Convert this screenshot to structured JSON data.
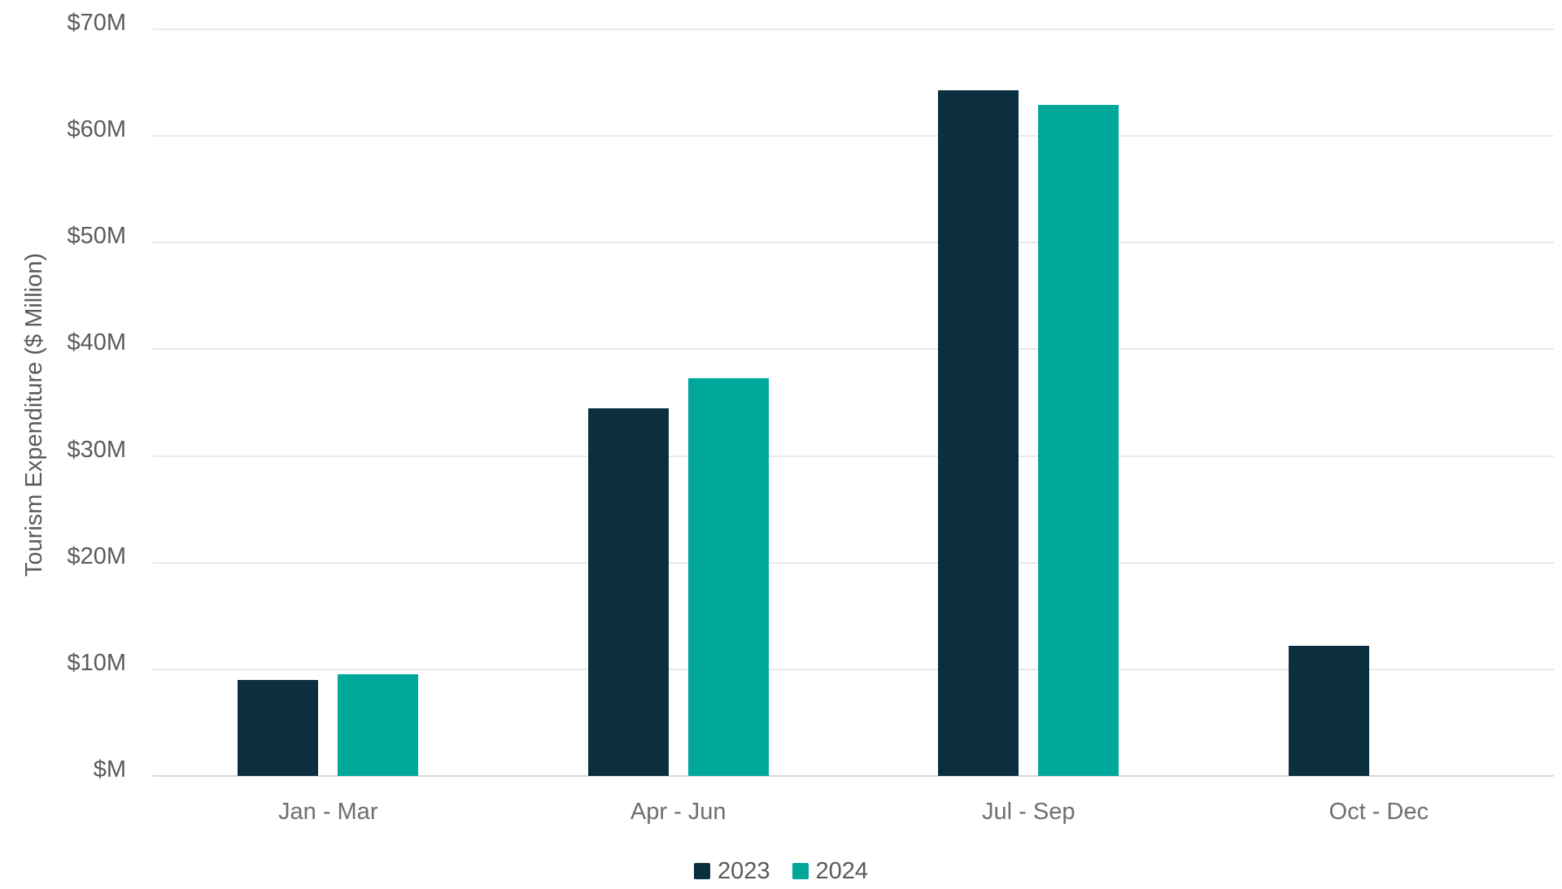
{
  "chart_data": {
    "type": "bar",
    "categories": [
      "Jan - Mar",
      "Apr - Jun",
      "Jul - Sep",
      "Oct - Dec"
    ],
    "series": [
      {
        "name": "2023",
        "color": "#0c2f3f",
        "values": [
          9.0,
          34.5,
          64.3,
          12.2
        ]
      },
      {
        "name": "2024",
        "color": "#00a79b",
        "values": [
          9.5,
          37.3,
          62.9,
          null
        ]
      }
    ],
    "title": "",
    "xlabel": "",
    "ylabel": "Tourism Expenditure ($ Million)",
    "ylim": [
      0,
      70
    ],
    "ytick_interval": 10,
    "yticks": [
      {
        "value": 0,
        "label": "$M"
      },
      {
        "value": 10,
        "label": "$10M"
      },
      {
        "value": 20,
        "label": "$20M"
      },
      {
        "value": 30,
        "label": "$30M"
      },
      {
        "value": 40,
        "label": "$40M"
      },
      {
        "value": 50,
        "label": "$50M"
      },
      {
        "value": 60,
        "label": "$60M"
      },
      {
        "value": 70,
        "label": "$70M"
      }
    ],
    "grid": "horizontal",
    "legend_position": "bottom-center"
  }
}
